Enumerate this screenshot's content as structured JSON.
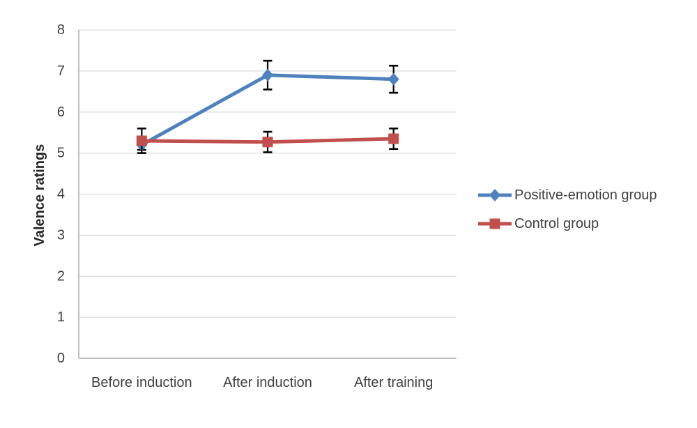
{
  "chart_data": {
    "type": "line",
    "title": "",
    "xlabel": "",
    "ylabel": "Valence ratings",
    "ylim": [
      0,
      8
    ],
    "ytick_step": 1,
    "yticks": [
      "0",
      "1",
      "2",
      "3",
      "4",
      "5",
      "6",
      "7",
      "8"
    ],
    "grid": "horizontal",
    "legend_position": "right",
    "categories": [
      "Before induction",
      "After induction",
      "After training"
    ],
    "series": [
      {
        "name": "Positive-emotion group",
        "color": "#4F81BD",
        "marker": "diamond",
        "values": [
          5.2,
          6.9,
          6.8
        ],
        "error_bars": [
          0.12,
          0.35,
          0.33
        ]
      },
      {
        "name": "Control group",
        "color": "#C0504D",
        "marker": "square",
        "values": [
          5.3,
          5.27,
          5.35
        ],
        "error_bars": [
          0.3,
          0.25,
          0.25
        ]
      }
    ],
    "colors": {
      "gridline": "#D9D9D9",
      "axis": "#A6A6A6",
      "tick_text": "#3F3F3F",
      "axis_title_text": "#262626",
      "error_bar": "#000000",
      "background": "#FFFFFF"
    }
  }
}
